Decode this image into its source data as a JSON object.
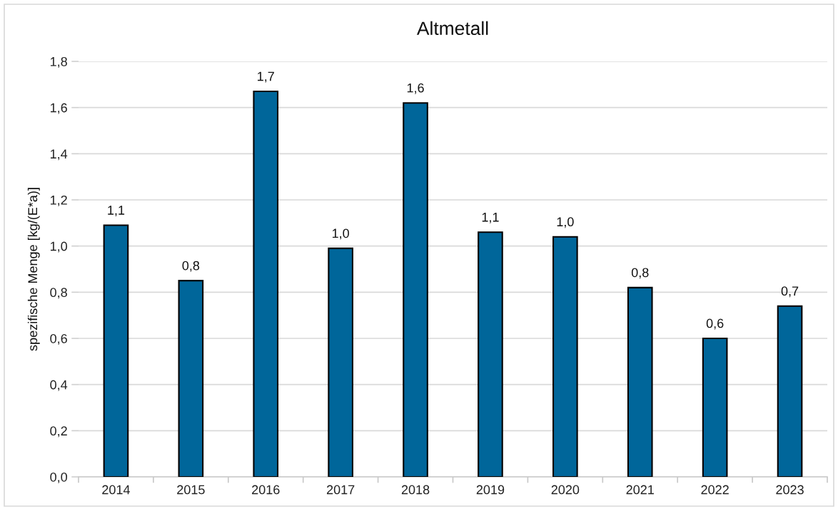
{
  "chart_data": {
    "type": "bar",
    "title": "Altmetall",
    "ylabel": "spezifische Menge [kg/(E*a)]",
    "categories": [
      "2014",
      "2015",
      "2016",
      "2017",
      "2018",
      "2019",
      "2020",
      "2021",
      "2022",
      "2023"
    ],
    "values": [
      1.09,
      0.85,
      1.67,
      0.99,
      1.62,
      1.06,
      1.04,
      0.82,
      0.6,
      0.74
    ],
    "value_labels": [
      "1,1",
      "0,8",
      "1,7",
      "1,0",
      "1,6",
      "1,1",
      "1,0",
      "0,8",
      "0,6",
      "0,7"
    ],
    "color": "#00669a",
    "ylim": [
      0,
      1.8
    ],
    "yticks": [
      {
        "value": 0,
        "label": "0,0"
      },
      {
        "value": 0.2,
        "label": "0,2"
      },
      {
        "value": 0.4,
        "label": "0,4"
      },
      {
        "value": 0.6,
        "label": "0,6"
      },
      {
        "value": 0.8,
        "label": "0,8"
      },
      {
        "value": 1.0,
        "label": "1,0"
      },
      {
        "value": 1.2,
        "label": "1,2"
      },
      {
        "value": 1.4,
        "label": "1,4"
      },
      {
        "value": 1.6,
        "label": "1,6"
      },
      {
        "value": 1.8,
        "label": "1,8"
      }
    ],
    "grid": "y",
    "legend": false
  }
}
